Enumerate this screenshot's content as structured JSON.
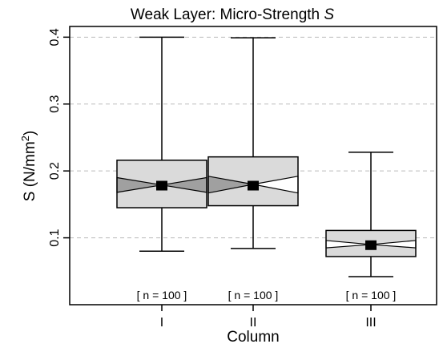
{
  "chart_data": {
    "type": "box",
    "title_prefix": "Weak Layer: Micro-Strength",
    "title_symbol": "S",
    "ylabel_prefix": "S (N/mm",
    "ylabel_sup": "2",
    "ylabel_suffix": ")",
    "xlabel": "Column",
    "categories": [
      "I",
      "II",
      "III"
    ],
    "yticks": [
      "0.1",
      "0.2",
      "0.3",
      "0.4"
    ],
    "ylim": [
      0.0,
      0.416
    ],
    "grid": "horizontal dashed",
    "boxes": [
      {
        "category": "I",
        "whisker_low": 0.08,
        "q1": 0.145,
        "median": 0.179,
        "q3": 0.216,
        "whisker_high": 0.4,
        "mean": 0.178,
        "notch_low": 0.168,
        "notch_high": 0.19,
        "n_label": "[ n = 100 ]"
      },
      {
        "category": "II",
        "whisker_low": 0.084,
        "q1": 0.148,
        "median": 0.18,
        "q3": 0.221,
        "whisker_high": 0.399,
        "mean": 0.178,
        "notch_low": 0.167,
        "notch_high": 0.192,
        "n_label": "[ n = 100 ]"
      },
      {
        "category": "III",
        "whisker_low": 0.042,
        "q1": 0.072,
        "median": 0.09,
        "q3": 0.111,
        "whisker_high": 0.228,
        "mean": 0.089,
        "notch_low": 0.085,
        "notch_high": 0.096,
        "n_label": "[ n = 100 ]"
      }
    ],
    "colors": {
      "box_fill": "#dadada",
      "notch_fill": "#a0a0a0",
      "notch_fill_white": "#ffffff",
      "grid": "#bbbbbb",
      "mean_marker": "#000000"
    }
  }
}
